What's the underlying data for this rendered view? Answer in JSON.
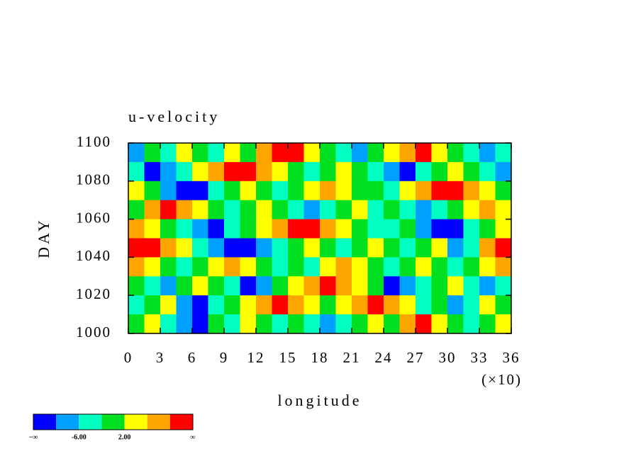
{
  "chart_data": {
    "type": "contour",
    "title": "u-velocity",
    "x_label": "longitude",
    "y_label": "DAY",
    "x_multiplier": "(×10)",
    "xlim": [
      0,
      36
    ],
    "xticks": [
      0,
      3,
      6,
      9,
      12,
      15,
      18,
      21,
      24,
      27,
      30,
      33,
      36
    ],
    "ylim": [
      1000,
      1100
    ],
    "yticks": [
      1000,
      1020,
      1040,
      1060,
      1080,
      1100
    ],
    "level_colors": [
      "#0000ff",
      "#00a0ff",
      "#00ffc0",
      "#00e020",
      "#ffff00",
      "#ffa500",
      "#ff0000"
    ],
    "colorbar_labels": [
      "−∞",
      "-6.00",
      "2.00",
      "∞"
    ],
    "field": [
      [
        1,
        3,
        2,
        4,
        3,
        2,
        4,
        3,
        5,
        6,
        6,
        4,
        3,
        2,
        1,
        3,
        4,
        5,
        6,
        4,
        3,
        2,
        1,
        2
      ],
      [
        2,
        0,
        1,
        2,
        4,
        5,
        6,
        6,
        5,
        4,
        3,
        2,
        3,
        4,
        3,
        2,
        1,
        0,
        2,
        3,
        4,
        3,
        2,
        1
      ],
      [
        4,
        3,
        1,
        0,
        0,
        2,
        3,
        4,
        3,
        2,
        3,
        4,
        5,
        4,
        3,
        3,
        2,
        4,
        5,
        6,
        6,
        5,
        4,
        3
      ],
      [
        3,
        5,
        6,
        5,
        4,
        3,
        2,
        3,
        4,
        3,
        2,
        1,
        2,
        3,
        4,
        2,
        3,
        2,
        1,
        2,
        3,
        4,
        5,
        4
      ],
      [
        5,
        4,
        3,
        2,
        1,
        0,
        2,
        3,
        4,
        5,
        6,
        6,
        5,
        4,
        3,
        2,
        2,
        3,
        1,
        0,
        0,
        2,
        3,
        4
      ],
      [
        6,
        6,
        5,
        4,
        2,
        1,
        0,
        0,
        1,
        2,
        3,
        4,
        3,
        2,
        3,
        4,
        3,
        2,
        3,
        4,
        1,
        2,
        5,
        6
      ],
      [
        5,
        4,
        3,
        2,
        3,
        4,
        5,
        4,
        3,
        2,
        3,
        2,
        4,
        5,
        4,
        3,
        2,
        3,
        4,
        3,
        2,
        3,
        4,
        5
      ],
      [
        3,
        2,
        1,
        3,
        4,
        3,
        2,
        0,
        1,
        3,
        4,
        5,
        6,
        5,
        4,
        3,
        0,
        1,
        2,
        3,
        4,
        2,
        1,
        2
      ],
      [
        2,
        3,
        4,
        1,
        0,
        2,
        3,
        4,
        5,
        6,
        5,
        4,
        3,
        4,
        5,
        6,
        5,
        4,
        2,
        3,
        1,
        2,
        4,
        3
      ],
      [
        3,
        4,
        2,
        1,
        0,
        3,
        2,
        4,
        3,
        2,
        3,
        2,
        1,
        2,
        3,
        4,
        3,
        5,
        6,
        4,
        3,
        2,
        3,
        4
      ]
    ]
  }
}
